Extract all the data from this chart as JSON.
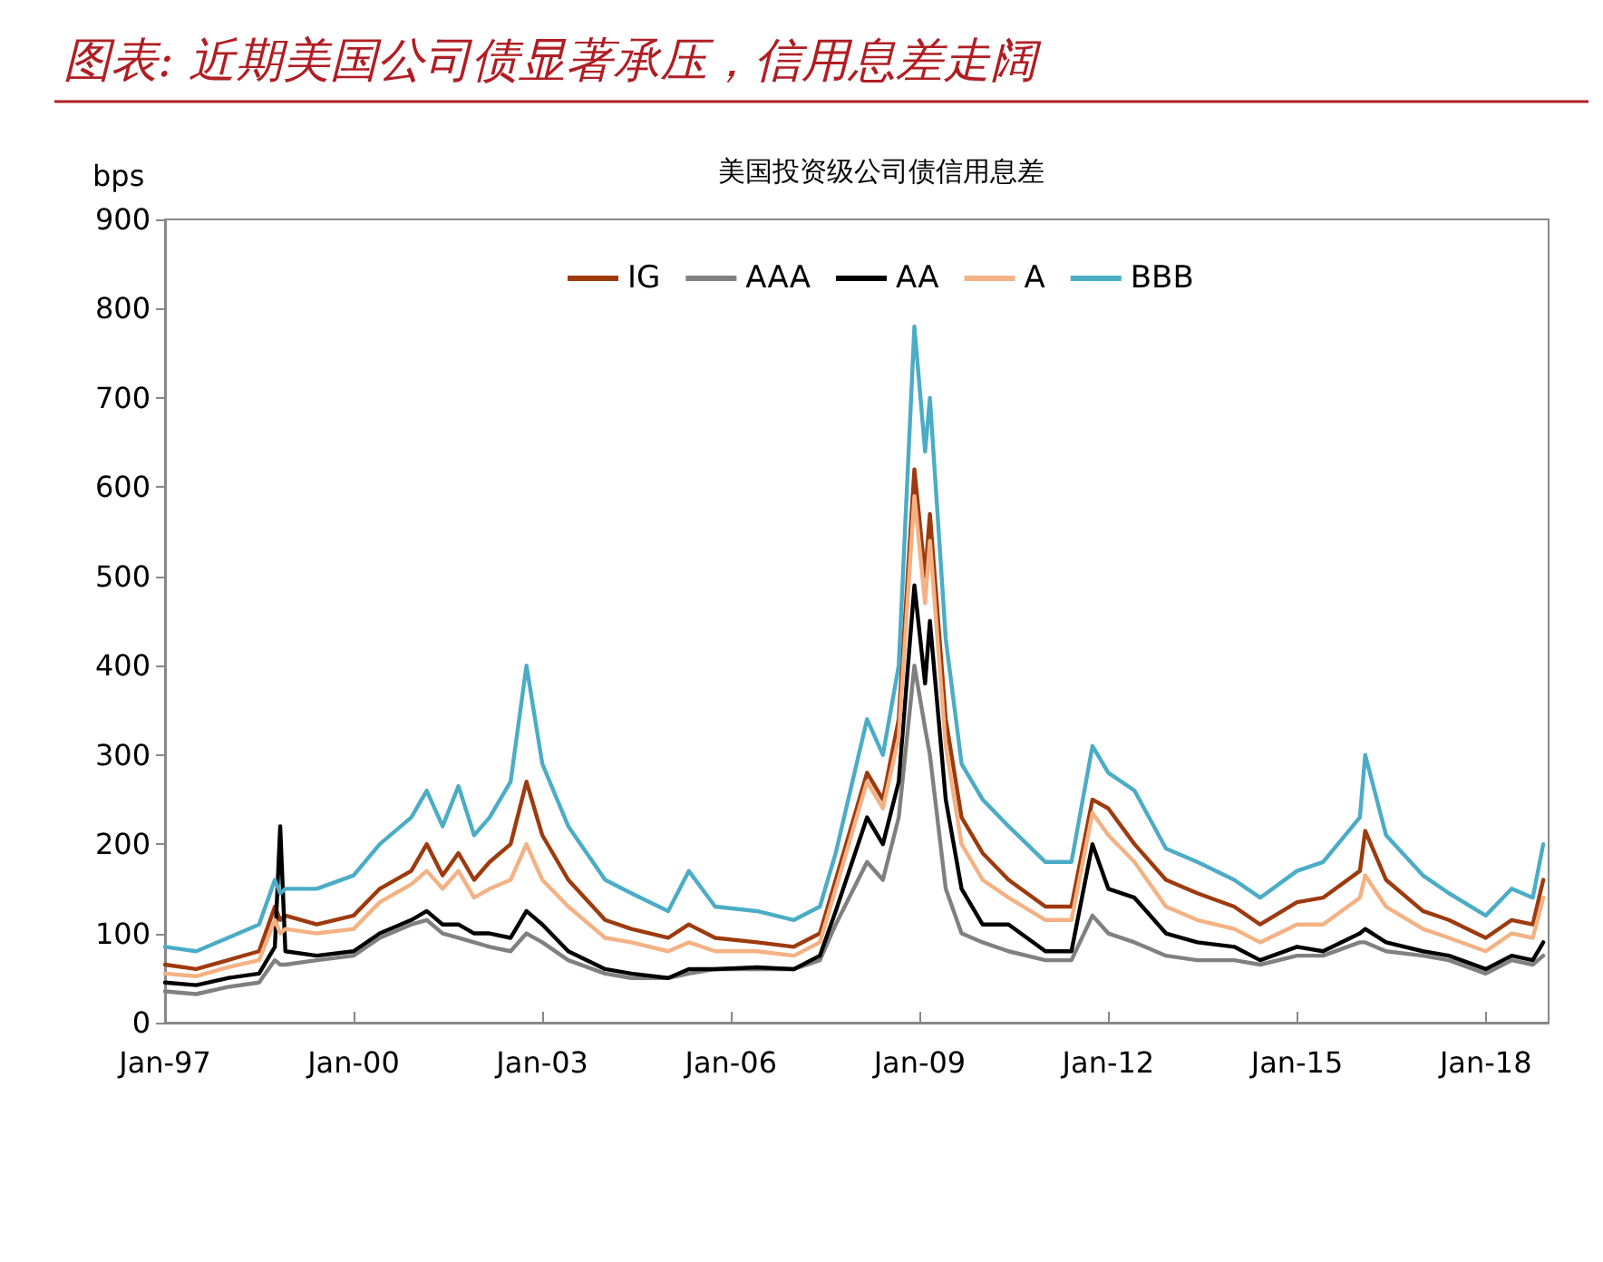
{
  "chart_data": {
    "type": "line",
    "title": "图表: 近期美国公司债显著承压，信用息差走阔",
    "subtitle": "美国投资级公司债信用息差",
    "ylabel": "bps",
    "x": [
      "1997-01",
      "1997-07",
      "1998-01",
      "1998-07",
      "1998-10",
      "1998-11",
      "1998-12",
      "1999-06",
      "2000-01",
      "2000-06",
      "2000-12",
      "2001-03",
      "2001-06",
      "2001-09",
      "2001-12",
      "2002-03",
      "2002-07",
      "2002-10",
      "2003-01",
      "2003-06",
      "2004-01",
      "2004-06",
      "2005-01",
      "2005-05",
      "2005-10",
      "2006-06",
      "2007-01",
      "2007-06",
      "2007-09",
      "2008-03",
      "2008-06",
      "2008-09",
      "2008-12",
      "2009-02",
      "2009-03",
      "2009-06",
      "2009-09",
      "2010-01",
      "2010-06",
      "2011-01",
      "2011-06",
      "2011-10",
      "2012-01",
      "2012-06",
      "2012-12",
      "2013-06",
      "2014-01",
      "2014-06",
      "2015-01",
      "2015-06",
      "2016-01",
      "2016-02",
      "2016-06",
      "2017-01",
      "2017-06",
      "2018-01",
      "2018-06",
      "2018-10",
      "2018-12"
    ],
    "series": [
      {
        "name": "IG",
        "color": "#9e3a0e",
        "values": [
          65,
          60,
          70,
          80,
          130,
          115,
          120,
          110,
          120,
          150,
          170,
          200,
          165,
          190,
          160,
          180,
          200,
          270,
          210,
          160,
          115,
          105,
          95,
          110,
          95,
          90,
          85,
          100,
          160,
          280,
          250,
          340,
          620,
          500,
          570,
          340,
          230,
          190,
          160,
          130,
          130,
          250,
          240,
          200,
          160,
          145,
          130,
          110,
          135,
          140,
          170,
          215,
          160,
          125,
          115,
          95,
          115,
          110,
          160
        ]
      },
      {
        "name": "AAA",
        "color": "#808080",
        "values": [
          35,
          32,
          40,
          45,
          70,
          65,
          65,
          70,
          75,
          95,
          110,
          115,
          100,
          95,
          90,
          85,
          80,
          100,
          90,
          70,
          55,
          50,
          50,
          55,
          60,
          60,
          60,
          70,
          110,
          180,
          160,
          230,
          400,
          330,
          300,
          150,
          100,
          90,
          80,
          70,
          70,
          120,
          100,
          90,
          75,
          70,
          70,
          65,
          75,
          75,
          90,
          90,
          80,
          75,
          70,
          55,
          70,
          65,
          75
        ]
      },
      {
        "name": "AA",
        "color": "#000000",
        "values": [
          45,
          42,
          50,
          55,
          85,
          220,
          80,
          75,
          80,
          100,
          115,
          125,
          110,
          110,
          100,
          100,
          95,
          125,
          110,
          80,
          60,
          55,
          50,
          60,
          60,
          62,
          60,
          75,
          125,
          230,
          200,
          270,
          490,
          380,
          450,
          250,
          150,
          110,
          110,
          80,
          80,
          200,
          150,
          140,
          100,
          90,
          85,
          70,
          85,
          80,
          100,
          105,
          90,
          80,
          75,
          60,
          75,
          70,
          90
        ]
      },
      {
        "name": "A",
        "color": "#f4b183",
        "values": [
          55,
          52,
          62,
          70,
          115,
          100,
          105,
          100,
          105,
          135,
          155,
          170,
          150,
          170,
          140,
          150,
          160,
          200,
          160,
          130,
          95,
          90,
          80,
          90,
          80,
          80,
          75,
          90,
          150,
          270,
          240,
          320,
          590,
          470,
          540,
          310,
          200,
          160,
          140,
          115,
          115,
          235,
          210,
          180,
          130,
          115,
          105,
          90,
          110,
          110,
          140,
          165,
          130,
          105,
          95,
          80,
          100,
          95,
          140
        ]
      },
      {
        "name": "BBB",
        "color": "#4bacc6",
        "values": [
          85,
          80,
          95,
          110,
          160,
          145,
          150,
          150,
          165,
          200,
          230,
          260,
          220,
          265,
          210,
          230,
          270,
          400,
          290,
          220,
          160,
          145,
          125,
          170,
          130,
          125,
          115,
          130,
          190,
          340,
          300,
          400,
          780,
          640,
          700,
          430,
          290,
          250,
          220,
          180,
          180,
          310,
          280,
          260,
          195,
          180,
          160,
          140,
          170,
          180,
          230,
          300,
          210,
          165,
          145,
          120,
          150,
          140,
          200
        ]
      }
    ],
    "xlim": [
      "1997-01",
      "2019-01"
    ],
    "xticks": [
      {
        "value": "1997-01",
        "label": "Jan-97"
      },
      {
        "value": "2000-01",
        "label": "Jan-00"
      },
      {
        "value": "2003-01",
        "label": "Jan-03"
      },
      {
        "value": "2006-01",
        "label": "Jan-06"
      },
      {
        "value": "2009-01",
        "label": "Jan-09"
      },
      {
        "value": "2012-01",
        "label": "Jan-12"
      },
      {
        "value": "2015-01",
        "label": "Jan-15"
      },
      {
        "value": "2018-01",
        "label": "Jan-18"
      }
    ],
    "ylim": [
      0,
      900
    ],
    "yticks": [
      0,
      100,
      200,
      300,
      400,
      500,
      600,
      700,
      800,
      900
    ],
    "grid": false,
    "legend": "top",
    "marker": "none",
    "line_style": "solid"
  }
}
